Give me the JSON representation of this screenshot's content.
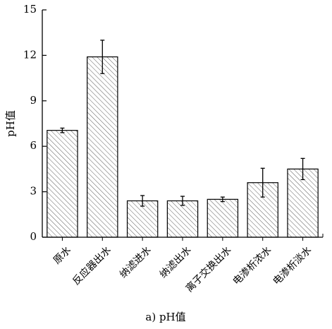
{
  "chart_data": {
    "type": "bar",
    "categories": [
      "原水",
      "反应器出水",
      "纳滤进水",
      "纳滤出水",
      "离子交换出水",
      "电渗析浓水",
      "电渗析淡水"
    ],
    "values": [
      7.05,
      11.9,
      2.4,
      2.4,
      2.5,
      3.6,
      4.5
    ],
    "errors": [
      0.15,
      1.1,
      0.35,
      0.3,
      0.15,
      0.95,
      0.7
    ],
    "ylabel": "pH值",
    "xlabel": "",
    "caption": "a) pH值",
    "ylim": [
      0,
      15
    ],
    "yticks": [
      "0",
      "3",
      "6",
      "9",
      "12",
      "15"
    ],
    "bar_fill": "hatched diagonal",
    "grid": false
  }
}
